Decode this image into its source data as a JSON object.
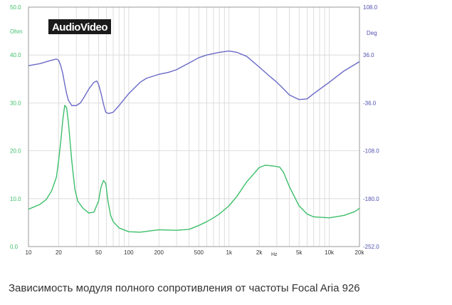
{
  "caption": "Зависимость модуля полного сопротивления от частоты Focal Aria 926",
  "chart_data": {
    "type": "line",
    "logo": "AudioVideo",
    "x_scale": "log",
    "xlim": [
      10,
      20000
    ],
    "x_ticks": [
      {
        "value": 10,
        "label": "10"
      },
      {
        "value": 20,
        "label": "20"
      },
      {
        "value": 50,
        "label": "50"
      },
      {
        "value": 100,
        "label": "100"
      },
      {
        "value": 200,
        "label": "200"
      },
      {
        "value": 500,
        "label": "500"
      },
      {
        "value": 1000,
        "label": "1k"
      },
      {
        "value": 2000,
        "label": "2k"
      },
      {
        "value": 5000,
        "label": "5k"
      },
      {
        "value": 10000,
        "label": "10k"
      },
      {
        "value": 20000,
        "label": "20k"
      }
    ],
    "x_unit": "Hz",
    "left_axis": {
      "unit": "Ohm",
      "range": [
        0,
        50
      ],
      "ticks": [
        {
          "value": 0,
          "label": "0.0"
        },
        {
          "value": 10,
          "label": "10.0"
        },
        {
          "value": 20,
          "label": "20.0"
        },
        {
          "value": 30,
          "label": "30.0"
        },
        {
          "value": 40,
          "label": "40.0"
        },
        {
          "value": 50,
          "label": "50.0"
        }
      ]
    },
    "right_axis": {
      "unit": "Deg",
      "range": [
        -252,
        108
      ],
      "ticks": [
        {
          "value": 108,
          "label": "108.0"
        },
        {
          "value": 36,
          "label": "36.0"
        },
        {
          "value": -36,
          "label": "-36.0"
        },
        {
          "value": -108,
          "label": "-108.0"
        },
        {
          "value": -180,
          "label": "-180.0"
        },
        {
          "value": -252,
          "label": "-252.0"
        }
      ]
    },
    "grid": true,
    "series": [
      {
        "axis": "left",
        "color": "#3cbf6a",
        "x": [
          10,
          13,
          15,
          17,
          19,
          20,
          21,
          22,
          23,
          24,
          25,
          27,
          29,
          31,
          35,
          40,
          45,
          50,
          53,
          56,
          59,
          62,
          66,
          70,
          80,
          100,
          130,
          200,
          300,
          400,
          500,
          600,
          700,
          800,
          1000,
          1200,
          1500,
          2000,
          2300,
          2800,
          3200,
          3500,
          4000,
          5000,
          6000,
          7000,
          10000,
          14000,
          18000,
          20000
        ],
        "y": [
          7.8,
          8.8,
          9.8,
          11.6,
          14.5,
          18.0,
          22.0,
          26.5,
          29.5,
          29.0,
          26.0,
          18.0,
          12.0,
          9.5,
          8.0,
          7.0,
          7.2,
          9.5,
          12.5,
          13.8,
          13.2,
          9.5,
          6.5,
          5.2,
          3.9,
          3.1,
          3.0,
          3.5,
          3.4,
          3.6,
          4.4,
          5.2,
          6.0,
          6.8,
          8.5,
          10.5,
          13.5,
          16.5,
          17.0,
          16.8,
          16.6,
          15.5,
          12.5,
          8.5,
          6.8,
          6.2,
          6.0,
          6.5,
          7.3,
          8.0
        ]
      },
      {
        "axis": "right",
        "color": "#6a6ac8",
        "x": [
          10,
          13,
          16,
          19,
          20,
          21,
          22,
          23,
          24,
          25,
          27,
          30,
          33,
          36,
          40,
          45,
          48,
          50,
          53,
          56,
          59,
          63,
          70,
          80,
          100,
          130,
          150,
          200,
          250,
          300,
          400,
          500,
          600,
          800,
          1000,
          1200,
          1500,
          2000,
          2500,
          3000,
          3500,
          4000,
          5000,
          6000,
          7000,
          10000,
          14000,
          20000
        ],
        "y": [
          20,
          23,
          27,
          30,
          28,
          20,
          8,
          -8,
          -22,
          -32,
          -40,
          -40,
          -36,
          -27,
          -15,
          -5,
          -3,
          -8,
          -22,
          -38,
          -50,
          -52,
          -50,
          -40,
          -22,
          -5,
          1,
          7,
          10,
          14,
          24,
          32,
          36,
          40,
          42,
          40,
          34,
          18,
          5,
          -5,
          -15,
          -24,
          -31,
          -30,
          -22,
          -5,
          12,
          26
        ]
      }
    ]
  }
}
